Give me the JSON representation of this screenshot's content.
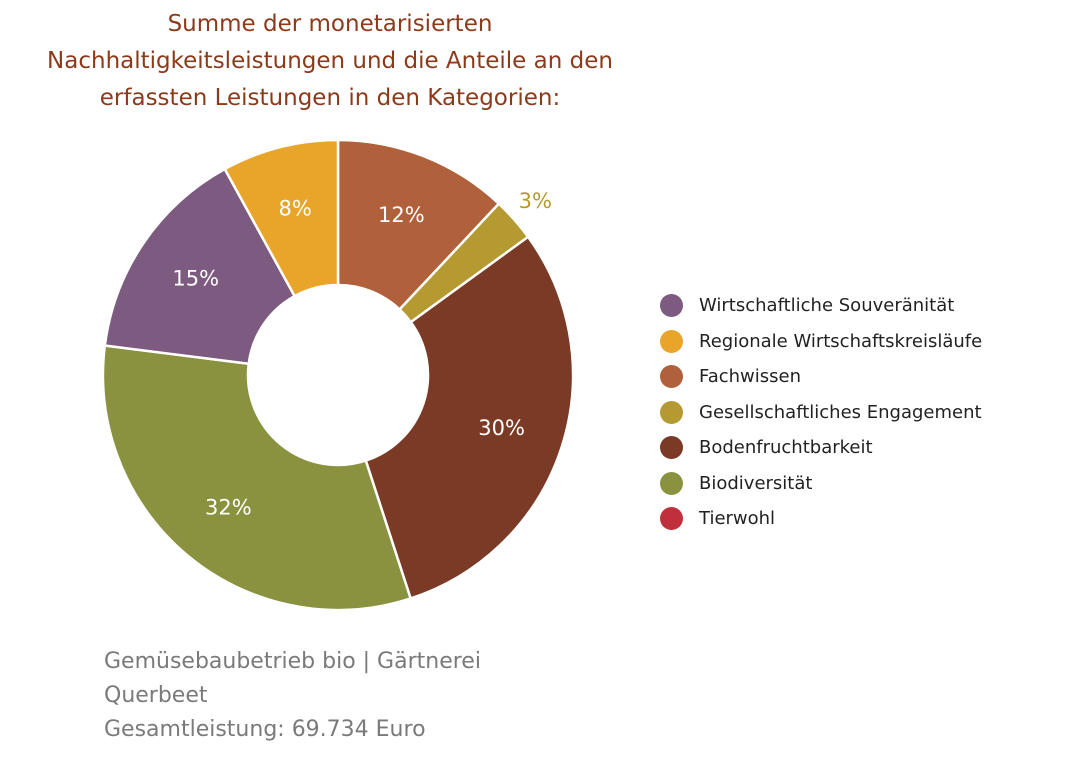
{
  "chart_data": {
    "type": "donut",
    "title_lines": [
      "Summe der monetarisierten",
      "Nachhaltigkeitsleistungen und die Anteile an den",
      "erfassten Leistungen in den Kategorien:"
    ],
    "legend_placement": "right",
    "series": [
      {
        "name": "Wirtschaftliche Souveränität",
        "value": 15,
        "label": "15%",
        "color": "#7d5a7f"
      },
      {
        "name": "Regionale Wirtschaftskreisläufe",
        "value": 8,
        "label": "8%",
        "color": "#e9a52a"
      },
      {
        "name": "Fachwissen",
        "value": 12,
        "label": "12%",
        "color": "#b0603a"
      },
      {
        "name": "Gesellschaftliches Engagement",
        "value": 3,
        "label": "3%",
        "color": "#b59a32"
      },
      {
        "name": "Bodenfruchtbarkeit",
        "value": 30,
        "label": "30%",
        "color": "#7a3a26"
      },
      {
        "name": "Biodiversität",
        "value": 32,
        "label": "32%",
        "color": "#8a9240"
      },
      {
        "name": "Tierwohl",
        "value": 0,
        "label": "",
        "color": "#c0303c"
      }
    ],
    "slice_order_clockwise_from_top": [
      "Fachwissen",
      "Gesellschaftliches Engagement",
      "Bodenfruchtbarkeit",
      "Biodiversität",
      "Wirtschaftliche Souveränität",
      "Regionale Wirtschaftskreisläufe"
    ]
  },
  "footer": {
    "lines": [
      "Gemüsebaubetrieb bio | Gärtnerei",
      "Querbeet",
      "Gesamtleistung: 69.734 Euro"
    ]
  }
}
